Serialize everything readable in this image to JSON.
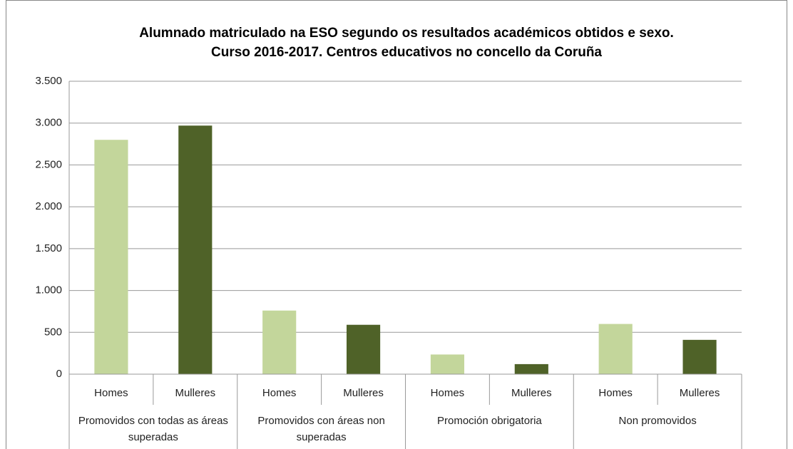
{
  "chart_data": {
    "type": "bar",
    "title": "Alumnado matriculado na ESO segundo os resultados académicos obtidos e sexo.",
    "subtitle": "Curso 2016-2017. Centros educativos no concello da Coruña",
    "groups": [
      {
        "name": "Promovidos con todas as áreas superadas",
        "categories": [
          "Homes",
          "Mulleres"
        ],
        "values": [
          2800,
          2970
        ]
      },
      {
        "name": "Promovidos con áreas non superadas",
        "categories": [
          "Homes",
          "Mulleres"
        ],
        "values": [
          760,
          590
        ]
      },
      {
        "name": "Promoción obrigatoria",
        "categories": [
          "Homes",
          "Mulleres"
        ],
        "values": [
          235,
          120
        ]
      },
      {
        "name": "Non promovidos",
        "categories": [
          "Homes",
          "Mulleres"
        ],
        "values": [
          600,
          410
        ]
      }
    ],
    "colors": [
      "#c3d69b",
      "#4f6228"
    ],
    "ylim": [
      0,
      3500
    ],
    "yticks": [
      0,
      500,
      {
        "value": 1000,
        "label": "1.000"
      },
      {
        "value": 1500,
        "label": "1.500"
      },
      {
        "value": 2000,
        "label": "2.000"
      },
      {
        "value": 2500,
        "label": "2.500"
      },
      {
        "value": 3000,
        "label": "3.000"
      },
      {
        "value": 3500,
        "label": "3.500"
      }
    ],
    "grid": true
  }
}
